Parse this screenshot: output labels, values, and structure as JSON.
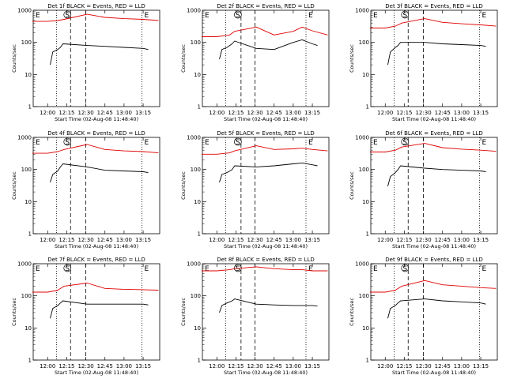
{
  "chart_data": {
    "type": "line",
    "y_scale": "log",
    "ylim": [
      1,
      1000
    ],
    "xlim": [
      "11:48:40",
      "13:28:00"
    ],
    "y_ticks": [
      "1",
      "10",
      "100",
      "1000"
    ],
    "x_ticks": [
      "12:00",
      "12:15",
      "12:30",
      "12:45",
      "13:00",
      "13:15"
    ],
    "ylabel": "Counts/sec",
    "xlabel": "Start Time (02-Aug-08 11:48:40)",
    "legend_text": "BLACK = Events, RED = LLD",
    "colors": {
      "events": "#000000",
      "lld": "#e00000"
    },
    "markers": {
      "start": "S",
      "end": "E"
    },
    "panels": [
      {
        "title": "Det 1f BLACK = Events, RED = LLD",
        "dotted_lines": [
          "12:07",
          "13:14"
        ],
        "dashed_lines": [
          "12:18",
          "12:30"
        ],
        "series": [
          {
            "name": "BLACK = Events",
            "x": [
              "12:02",
              "12:04",
              "12:08",
              "12:10",
              "12:12",
              "12:31",
              "12:45",
              "13:00",
              "13:15",
              "13:19"
            ],
            "y": [
              20,
              50,
              60,
              70,
              90,
              80,
              75,
              70,
              65,
              60
            ]
          },
          {
            "name": "RED = LLD",
            "x": [
              "11:48",
              "12:00",
              "12:08",
              "12:13",
              "12:31",
              "12:45",
              "13:00",
              "13:15",
              "13:27"
            ],
            "y": [
              450,
              450,
              480,
              520,
              750,
              600,
              550,
              520,
              480
            ]
          }
        ]
      },
      {
        "title": "Det 2f BLACK = Events, RED = LLD",
        "dotted_lines": [
          "12:07",
          "13:10"
        ],
        "dashed_lines": [
          "12:19",
          "12:30"
        ],
        "series": [
          {
            "name": "BLACK = Events",
            "x": [
              "12:02",
              "12:04",
              "12:08",
              "12:12",
              "12:14",
              "12:31",
              "12:45",
              "13:00",
              "13:07",
              "13:15",
              "13:19"
            ],
            "y": [
              30,
              60,
              70,
              90,
              110,
              65,
              60,
              100,
              120,
              90,
              80
            ]
          },
          {
            "name": "RED = LLD",
            "x": [
              "11:48",
              "12:00",
              "12:10",
              "12:14",
              "12:31",
              "12:45",
              "13:00",
              "13:07",
              "13:15",
              "13:27"
            ],
            "y": [
              150,
              150,
              170,
              220,
              300,
              170,
              220,
              300,
              230,
              170
            ]
          }
        ]
      },
      {
        "title": "Det 3f BLACK = Events, RED = LLD",
        "dotted_lines": [
          "12:07",
          "13:14"
        ],
        "dashed_lines": [
          "12:18",
          "12:30"
        ],
        "series": [
          {
            "name": "BLACK = Events",
            "x": [
              "12:02",
              "12:04",
              "12:08",
              "12:10",
              "12:12",
              "12:31",
              "12:45",
              "13:00",
              "13:15",
              "13:19"
            ],
            "y": [
              20,
              50,
              70,
              80,
              100,
              100,
              90,
              85,
              80,
              75
            ]
          },
          {
            "name": "RED = LLD",
            "x": [
              "11:48",
              "12:00",
              "12:08",
              "12:13",
              "12:31",
              "12:45",
              "13:00",
              "13:15",
              "13:27"
            ],
            "y": [
              280,
              280,
              320,
              400,
              550,
              420,
              380,
              350,
              320
            ]
          }
        ]
      },
      {
        "title": "Det 4f BLACK = Events, RED = LLD",
        "dotted_lines": [
          "12:07",
          "13:14"
        ],
        "dashed_lines": [
          "12:18",
          "12:30"
        ],
        "series": [
          {
            "name": "BLACK = Events",
            "x": [
              "12:02",
              "12:04",
              "12:08",
              "12:10",
              "12:12",
              "12:31",
              "12:45",
              "13:00",
              "13:15",
              "13:19"
            ],
            "y": [
              40,
              70,
              90,
              120,
              150,
              120,
              95,
              90,
              85,
              80
            ]
          },
          {
            "name": "RED = LLD",
            "x": [
              "11:48",
              "12:00",
              "12:08",
              "12:13",
              "12:31",
              "12:45",
              "13:00",
              "13:15",
              "13:27"
            ],
            "y": [
              320,
              320,
              360,
              420,
              600,
              420,
              380,
              360,
              330
            ]
          }
        ]
      },
      {
        "title": "Det 5f BLACK = Events, RED = LLD",
        "dotted_lines": [
          "12:07",
          "13:10"
        ],
        "dashed_lines": [
          "12:19",
          "12:30"
        ],
        "series": [
          {
            "name": "BLACK = Events",
            "x": [
              "12:02",
              "12:04",
              "12:08",
              "12:12",
              "12:14",
              "12:31",
              "12:45",
              "13:00",
              "13:07",
              "13:15",
              "13:19"
            ],
            "y": [
              40,
              70,
              80,
              100,
              130,
              120,
              130,
              150,
              160,
              140,
              130
            ]
          },
          {
            "name": "RED = LLD",
            "x": [
              "11:48",
              "12:00",
              "12:10",
              "12:14",
              "12:31",
              "12:45",
              "13:00",
              "13:07",
              "13:15",
              "13:27"
            ],
            "y": [
              300,
              300,
              330,
              380,
              550,
              420,
              440,
              460,
              420,
              380
            ]
          }
        ]
      },
      {
        "title": "Det 6f BLACK = Events, RED = LLD",
        "dotted_lines": [
          "12:07",
          "13:14"
        ],
        "dashed_lines": [
          "12:18",
          "12:30"
        ],
        "series": [
          {
            "name": "BLACK = Events",
            "x": [
              "12:02",
              "12:04",
              "12:08",
              "12:10",
              "12:12",
              "12:31",
              "12:45",
              "13:00",
              "13:15",
              "13:19"
            ],
            "y": [
              30,
              60,
              80,
              100,
              130,
              110,
              100,
              95,
              90,
              85
            ]
          },
          {
            "name": "RED = LLD",
            "x": [
              "11:48",
              "12:00",
              "12:08",
              "12:13",
              "12:31",
              "12:45",
              "13:00",
              "13:15",
              "13:27"
            ],
            "y": [
              350,
              350,
              400,
              500,
              650,
              480,
              430,
              400,
              370
            ]
          }
        ]
      },
      {
        "title": "Det 7f BLACK = Events, RED = LLD",
        "dotted_lines": [
          "12:07",
          "13:14"
        ],
        "dashed_lines": [
          "12:18",
          "12:30"
        ],
        "series": [
          {
            "name": "BLACK = Events",
            "x": [
              "12:02",
              "12:04",
              "12:08",
              "12:10",
              "12:12",
              "12:31",
              "12:45",
              "13:00",
              "13:15",
              "13:19"
            ],
            "y": [
              20,
              40,
              50,
              60,
              70,
              55,
              55,
              55,
              55,
              52
            ]
          },
          {
            "name": "RED = LLD",
            "x": [
              "11:48",
              "12:00",
              "12:08",
              "12:13",
              "12:31",
              "12:45",
              "13:00",
              "13:15",
              "13:27"
            ],
            "y": [
              130,
              130,
              150,
              200,
              250,
              170,
              160,
              155,
              150
            ]
          }
        ]
      },
      {
        "title": "Det 8f BLACK = Events, RED = LLD",
        "dotted_lines": [
          "12:07",
          "13:10"
        ],
        "dashed_lines": [
          "12:19",
          "12:30"
        ],
        "series": [
          {
            "name": "BLACK = Events",
            "x": [
              "12:02",
              "12:04",
              "12:08",
              "12:12",
              "12:14",
              "12:31",
              "12:45",
              "13:00",
              "13:07",
              "13:15",
              "13:19"
            ],
            "y": [
              30,
              50,
              60,
              70,
              80,
              55,
              52,
              50,
              50,
              50,
              48
            ]
          },
          {
            "name": "RED = LLD",
            "x": [
              "11:48",
              "12:00",
              "12:10",
              "12:14",
              "12:31",
              "12:45",
              "13:00",
              "13:07",
              "13:15",
              "13:27"
            ],
            "y": [
              600,
              600,
              650,
              700,
              800,
              700,
              650,
              650,
              600,
              600
            ]
          }
        ]
      },
      {
        "title": "Det 9f BLACK = Events, RED = LLD",
        "dotted_lines": [
          "12:07",
          "13:14"
        ],
        "dashed_lines": [
          "12:18",
          "12:30"
        ],
        "series": [
          {
            "name": "BLACK = Events",
            "x": [
              "12:02",
              "12:04",
              "12:08",
              "12:10",
              "12:12",
              "12:31",
              "12:45",
              "13:00",
              "13:15",
              "13:19"
            ],
            "y": [
              20,
              40,
              50,
              60,
              70,
              80,
              70,
              65,
              60,
              55
            ]
          },
          {
            "name": "RED = LLD",
            "x": [
              "11:48",
              "12:00",
              "12:08",
              "12:13",
              "12:31",
              "12:45",
              "13:00",
              "13:15",
              "13:27"
            ],
            "y": [
              130,
              130,
              150,
              200,
              300,
              220,
              200,
              180,
              170
            ]
          }
        ]
      }
    ]
  }
}
